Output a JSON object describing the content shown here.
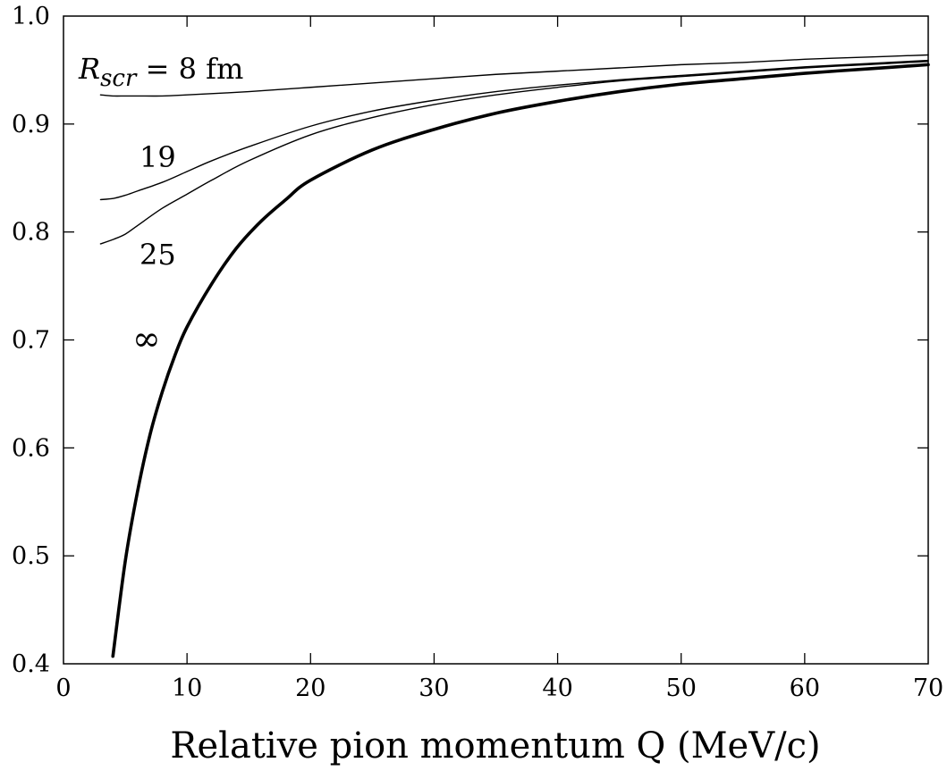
{
  "chart_data": {
    "type": "line",
    "title": "",
    "xlabel": "Relative pion momentum Q (MeV/c)",
    "ylabel": "",
    "xlim": [
      0,
      70
    ],
    "ylim": [
      0.4,
      1.0
    ],
    "xticks": [
      "0",
      "10",
      "20",
      "30",
      "40",
      "50",
      "60",
      "70"
    ],
    "yticks": [
      "0.4",
      "0.5",
      "0.6",
      "0.7",
      "0.8",
      "0.9",
      "1.0"
    ],
    "grid": false,
    "annotations": {
      "r8_prefix": "R",
      "r8_sub": "scr",
      "r8_suffix": " = 8 fm",
      "r19": "19",
      "r25": "25",
      "rinf": "∞"
    },
    "series": [
      {
        "id": "r8",
        "x": [
          3,
          4,
          5,
          6,
          8,
          10,
          15,
          20,
          25,
          30,
          35,
          40,
          45,
          50,
          55,
          60,
          65,
          70
        ],
        "values": [
          0.927,
          0.926,
          0.926,
          0.926,
          0.926,
          0.927,
          0.93,
          0.934,
          0.938,
          0.942,
          0.946,
          0.949,
          0.952,
          0.955,
          0.957,
          0.96,
          0.962,
          0.964
        ]
      },
      {
        "id": "r19",
        "x": [
          3,
          4,
          5,
          6,
          8,
          10,
          12,
          15,
          20,
          25,
          30,
          35,
          40,
          45,
          50,
          55,
          60,
          65,
          70
        ],
        "values": [
          0.83,
          0.831,
          0.834,
          0.838,
          0.846,
          0.856,
          0.866,
          0.879,
          0.898,
          0.912,
          0.922,
          0.93,
          0.936,
          0.941,
          0.945,
          0.949,
          0.953,
          0.956,
          0.959
        ]
      },
      {
        "id": "r25",
        "x": [
          3,
          4,
          5,
          6,
          8,
          10,
          12,
          15,
          20,
          25,
          30,
          35,
          40,
          45,
          50,
          55,
          60,
          65,
          70
        ],
        "values": [
          0.789,
          0.793,
          0.798,
          0.806,
          0.822,
          0.835,
          0.848,
          0.866,
          0.89,
          0.906,
          0.918,
          0.927,
          0.934,
          0.94,
          0.944,
          0.948,
          0.952,
          0.955,
          0.958
        ]
      },
      {
        "id": "rinf",
        "x": [
          4,
          5,
          6,
          7,
          8,
          9,
          10,
          12,
          14,
          16,
          18,
          20,
          25,
          30,
          35,
          40,
          45,
          50,
          55,
          60,
          65,
          70
        ],
        "values": [
          0.407,
          0.495,
          0.56,
          0.612,
          0.652,
          0.685,
          0.712,
          0.752,
          0.785,
          0.81,
          0.83,
          0.848,
          0.876,
          0.895,
          0.91,
          0.921,
          0.93,
          0.937,
          0.942,
          0.947,
          0.951,
          0.955
        ]
      }
    ]
  }
}
